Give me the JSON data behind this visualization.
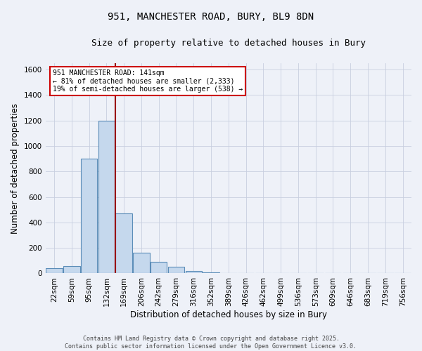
{
  "title_line1": "951, MANCHESTER ROAD, BURY, BL9 8DN",
  "title_line2": "Size of property relative to detached houses in Bury",
  "xlabel": "Distribution of detached houses by size in Bury",
  "ylabel": "Number of detached properties",
  "bins": [
    "22sqm",
    "59sqm",
    "95sqm",
    "132sqm",
    "169sqm",
    "206sqm",
    "242sqm",
    "279sqm",
    "316sqm",
    "352sqm",
    "389sqm",
    "426sqm",
    "462sqm",
    "499sqm",
    "536sqm",
    "573sqm",
    "609sqm",
    "646sqm",
    "683sqm",
    "719sqm",
    "756sqm"
  ],
  "values": [
    40,
    60,
    900,
    1200,
    470,
    160,
    90,
    50,
    20,
    10,
    5,
    0,
    0,
    0,
    0,
    0,
    0,
    0,
    0,
    0,
    0
  ],
  "bar_color": "#c5d8ed",
  "bar_edge_color": "#5b8db8",
  "property_line_color": "#990000",
  "annotation_text": "951 MANCHESTER ROAD: 141sqm\n← 81% of detached houses are smaller (2,333)\n19% of semi-detached houses are larger (538) →",
  "annotation_box_color": "#ffffff",
  "annotation_box_edge": "#cc0000",
  "ylim": [
    0,
    1650
  ],
  "yticks": [
    0,
    200,
    400,
    600,
    800,
    1000,
    1200,
    1400,
    1600
  ],
  "background_color": "#eef1f8",
  "grid_color": "#c8cfe0",
  "footnote": "Contains HM Land Registry data © Crown copyright and database right 2025.\nContains public sector information licensed under the Open Government Licence v3.0.",
  "title_fontsize": 10,
  "subtitle_fontsize": 9,
  "axis_label_fontsize": 8.5,
  "tick_fontsize": 7.5,
  "footnote_fontsize": 6,
  "annotation_fontsize": 7
}
